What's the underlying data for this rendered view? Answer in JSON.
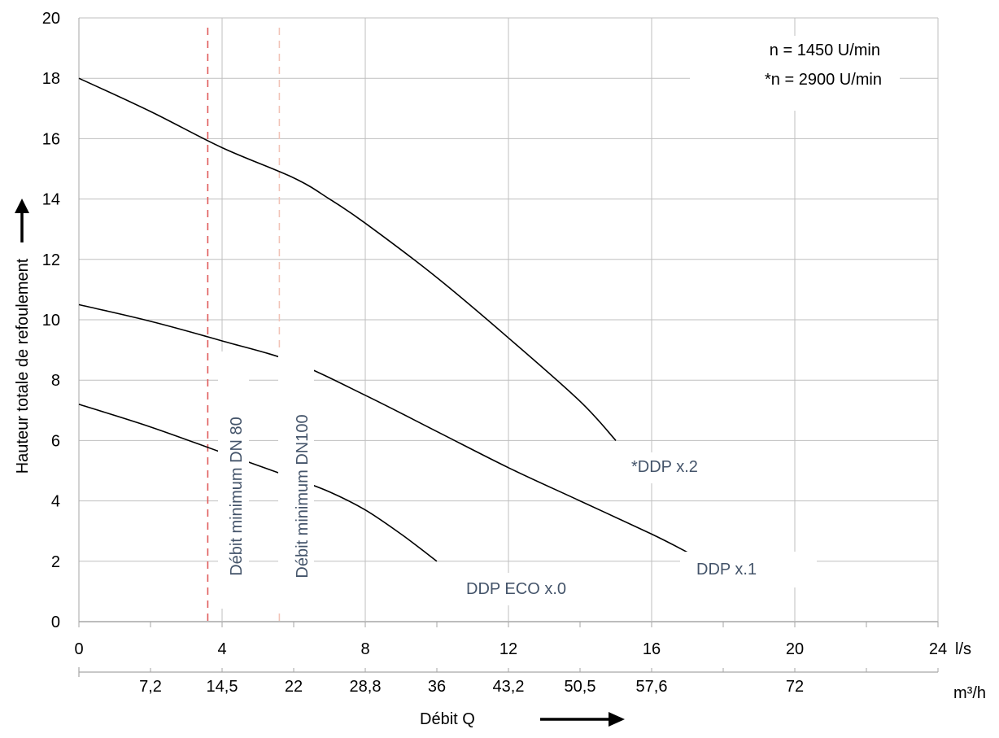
{
  "chart_data": {
    "type": "line",
    "ylabel": "Hauteur totale de refoulement",
    "xlabel": "Débit Q",
    "x_unit": "l/s",
    "x2_unit": "m³/h",
    "xlim": [
      0,
      24
    ],
    "ylim": [
      0,
      20
    ],
    "x_ticks": [
      0,
      4,
      8,
      12,
      16,
      20,
      24
    ],
    "y_ticks": [
      0,
      2,
      4,
      6,
      8,
      10,
      12,
      14,
      16,
      18,
      20
    ],
    "x2_ticks": [
      {
        "label": "7,2",
        "x": 2
      },
      {
        "label": "14,5",
        "x": 4
      },
      {
        "label": "22",
        "x": 6
      },
      {
        "label": "28,8",
        "x": 8
      },
      {
        "label": "36",
        "x": 10
      },
      {
        "label": "43,2",
        "x": 12
      },
      {
        "label": "50,5",
        "x": 14
      },
      {
        "label": "57,6",
        "x": 16
      },
      {
        "label": "72",
        "x": 20
      }
    ],
    "x2_minor_ticks": [
      0,
      2,
      4,
      6,
      8,
      10,
      12,
      14,
      16,
      18,
      20,
      22,
      24
    ],
    "grid": true,
    "speed_note": [
      "n = 1450 U/min",
      "*n = 2900 U/min"
    ],
    "series": [
      {
        "name": "*DDP x.2",
        "color": "#000000",
        "points": [
          [
            0,
            18.0
          ],
          [
            2,
            16.9
          ],
          [
            4,
            15.7
          ],
          [
            6,
            14.7
          ],
          [
            7,
            14.0
          ],
          [
            8,
            13.2
          ],
          [
            10,
            11.4
          ],
          [
            12,
            9.4
          ],
          [
            14,
            7.3
          ],
          [
            15,
            6.0
          ]
        ]
      },
      {
        "name": "DDP x.1",
        "color": "#000000",
        "points": [
          [
            0,
            10.5
          ],
          [
            2,
            9.95
          ],
          [
            4,
            9.3
          ],
          [
            6,
            8.6
          ],
          [
            8,
            7.5
          ],
          [
            10,
            6.3
          ],
          [
            12,
            5.1
          ],
          [
            14,
            4.0
          ],
          [
            16,
            2.9
          ],
          [
            17,
            2.3
          ]
        ]
      },
      {
        "name": "DDP ECO x.0",
        "color": "#000000",
        "points": [
          [
            0,
            7.2
          ],
          [
            2,
            6.45
          ],
          [
            4,
            5.6
          ],
          [
            6,
            4.75
          ],
          [
            7,
            4.3
          ],
          [
            8,
            3.7
          ],
          [
            9,
            2.9
          ],
          [
            10,
            2.0
          ]
        ]
      }
    ],
    "annotations": [
      {
        "label": "Débit minimum DN 80",
        "x": 3.6,
        "color": "#e05a5a",
        "style": "dashed"
      },
      {
        "label": "Débit minimum DN100",
        "x": 5.6,
        "color": "#f2c4b8",
        "style": "dashed"
      }
    ],
    "colors": {
      "grid": "#bfbfbf",
      "axis": "#a6a6a6",
      "label": "#44546a"
    }
  }
}
